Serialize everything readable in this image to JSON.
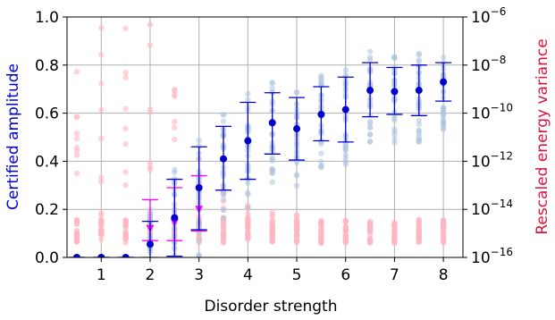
{
  "chart_data": {
    "type": "scatter",
    "xlabel": "Disorder strength",
    "ylabel_left": "Certified amplitude",
    "ylabel_right": "Rescaled energy variance",
    "xlim": [
      0.3,
      8.4
    ],
    "ylim_left": [
      0.0,
      1.0
    ],
    "ylim_right_log10": [
      -16,
      -6
    ],
    "x_ticks": [
      1,
      2,
      3,
      4,
      5,
      6,
      7,
      8
    ],
    "x_tick_labels": [
      "1",
      "2",
      "3",
      "4",
      "5",
      "6",
      "7",
      "8"
    ],
    "y_left_ticks": [
      0.0,
      0.2,
      0.4,
      0.6,
      0.8,
      1.0
    ],
    "y_left_tick_labels": [
      "0.0",
      "0.2",
      "0.4",
      "0.6",
      "0.8",
      "1.0"
    ],
    "y_right_ticks_log10": [
      -16,
      -14,
      -12,
      -10,
      -8,
      -6
    ],
    "y_right_tick_labels": [
      {
        "base": "10",
        "exp": "−16"
      },
      {
        "base": "10",
        "exp": "−14"
      },
      {
        "base": "10",
        "exp": "−12"
      },
      {
        "base": "10",
        "exp": "−10"
      },
      {
        "base": "10",
        "exp": "−8"
      },
      {
        "base": "10",
        "exp": "−6"
      }
    ],
    "grid": true,
    "colors": {
      "amplitude": "#0000cc",
      "amplitude_points": "#b0c4de",
      "variance": "#ff00ff",
      "variance_points": "#ffb6c1",
      "left_label": "#0000cc",
      "right_label": "#dc143c"
    },
    "amplitude_series": {
      "x": [
        0.5,
        1.0,
        1.5,
        2.0,
        2.5,
        3.0,
        3.5,
        4.0,
        4.5,
        5.0,
        5.5,
        6.0,
        6.5,
        7.0,
        7.5,
        8.0
      ],
      "mean": [
        0.0,
        0.0,
        0.0,
        0.055,
        0.165,
        0.29,
        0.41,
        0.485,
        0.56,
        0.535,
        0.595,
        0.615,
        0.695,
        0.69,
        0.695,
        0.73
      ],
      "err_low": [
        0.0,
        0.0,
        0.0,
        0.0,
        0.005,
        0.115,
        0.28,
        0.325,
        0.43,
        0.405,
        0.485,
        0.48,
        0.585,
        0.595,
        0.59,
        0.65
      ],
      "err_high": [
        0.0,
        0.0,
        0.0,
        0.15,
        0.325,
        0.46,
        0.545,
        0.645,
        0.685,
        0.665,
        0.71,
        0.75,
        0.81,
        0.79,
        0.8,
        0.81
      ]
    },
    "variance_series": {
      "x": [
        2.0,
        2.5,
        3.0
      ],
      "mean_log10": [
        -14.8,
        -14.55,
        -14.0
      ],
      "err_low_log10": [
        -15.3,
        -15.3,
        -14.9
      ],
      "err_high_log10": [
        -13.6,
        -13.1,
        -12.6
      ]
    }
  }
}
